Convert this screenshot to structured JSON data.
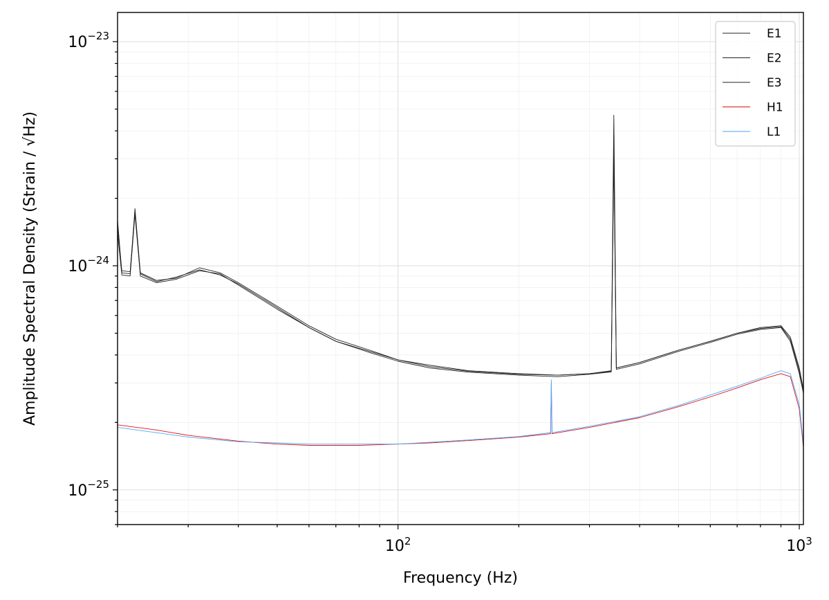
{
  "chart_data": {
    "type": "line",
    "title": "",
    "xlabel": "Frequency (Hz)",
    "ylabel": "Amplitude Spectral Density (Strain / √Hz)",
    "xscale": "log",
    "yscale": "log",
    "xlim": [
      20,
      1024
    ],
    "ylim": [
      7e-26,
      1.35e-23
    ],
    "grid": true,
    "legend_position": "top-right",
    "x_ticks": [
      {
        "value": 100,
        "base": "10",
        "exp": "2"
      },
      {
        "value": 1000,
        "base": "10",
        "exp": "3"
      }
    ],
    "y_ticks": [
      {
        "value": 1e-25,
        "base": "10",
        "exp": "−25"
      },
      {
        "value": 1e-24,
        "base": "10",
        "exp": "−24"
      },
      {
        "value": 1e-23,
        "base": "10",
        "exp": "−23"
      }
    ],
    "series": [
      {
        "name": "E1",
        "color": "#222222",
        "points": [
          [
            20,
            1.6e-24
          ],
          [
            20.5,
            9.3e-25
          ],
          [
            21.5,
            9.2e-25
          ],
          [
            22.1,
            1.8e-24
          ],
          [
            22.8,
            9.3e-25
          ],
          [
            25,
            8.6e-25
          ],
          [
            28,
            8.8e-25
          ],
          [
            32,
            9.8e-25
          ],
          [
            36,
            9.3e-25
          ],
          [
            40,
            8.4e-25
          ],
          [
            50,
            6.6e-25
          ],
          [
            60,
            5.4e-25
          ],
          [
            70,
            4.7e-25
          ],
          [
            85,
            4.2e-25
          ],
          [
            100,
            3.8e-25
          ],
          [
            120,
            3.6e-25
          ],
          [
            150,
            3.4e-25
          ],
          [
            200,
            3.3e-25
          ],
          [
            250,
            3.25e-25
          ],
          [
            300,
            3.3e-25
          ],
          [
            340,
            3.4e-25
          ],
          [
            345,
            4.7e-24
          ],
          [
            350,
            3.5e-25
          ],
          [
            400,
            3.7e-25
          ],
          [
            500,
            4.2e-25
          ],
          [
            600,
            4.6e-25
          ],
          [
            700,
            5e-25
          ],
          [
            800,
            5.3e-25
          ],
          [
            900,
            5.4e-25
          ],
          [
            950,
            4.8e-25
          ],
          [
            1000,
            3.5e-25
          ],
          [
            1024,
            2.8e-25
          ]
        ]
      },
      {
        "name": "E2",
        "color": "#222222",
        "points": [
          [
            20,
            1.5e-24
          ],
          [
            20.5,
            9.5e-25
          ],
          [
            21.5,
            9.4e-25
          ],
          [
            22.1,
            1.75e-24
          ],
          [
            22.8,
            9.2e-25
          ],
          [
            25,
            8.5e-25
          ],
          [
            28,
            8.9e-25
          ],
          [
            32,
            9.6e-25
          ],
          [
            36,
            9.1e-25
          ],
          [
            40,
            8.3e-25
          ],
          [
            50,
            6.5e-25
          ],
          [
            60,
            5.3e-25
          ],
          [
            70,
            4.6e-25
          ],
          [
            85,
            4.15e-25
          ],
          [
            100,
            3.8e-25
          ],
          [
            120,
            3.55e-25
          ],
          [
            150,
            3.38e-25
          ],
          [
            200,
            3.28e-25
          ],
          [
            250,
            3.25e-25
          ],
          [
            300,
            3.3e-25
          ],
          [
            340,
            3.38e-25
          ],
          [
            345,
            3.5e-24
          ],
          [
            350,
            3.5e-25
          ],
          [
            400,
            3.7e-25
          ],
          [
            500,
            4.2e-25
          ],
          [
            600,
            4.6e-25
          ],
          [
            700,
            5e-25
          ],
          [
            800,
            5.25e-25
          ],
          [
            900,
            5.35e-25
          ],
          [
            950,
            4.7e-25
          ],
          [
            1000,
            3.4e-25
          ],
          [
            1024,
            2.7e-25
          ]
        ]
      },
      {
        "name": "E3",
        "color": "#222222",
        "points": [
          [
            20,
            1.4e-24
          ],
          [
            20.5,
            9.1e-25
          ],
          [
            21.5,
            9e-25
          ],
          [
            22.1,
            1.7e-24
          ],
          [
            22.8,
            9e-25
          ],
          [
            25,
            8.4e-25
          ],
          [
            28,
            8.7e-25
          ],
          [
            32,
            9.5e-25
          ],
          [
            36,
            9.2e-25
          ],
          [
            40,
            8.2e-25
          ],
          [
            50,
            6.4e-25
          ],
          [
            60,
            5.3e-25
          ],
          [
            70,
            4.6e-25
          ],
          [
            85,
            4.1e-25
          ],
          [
            100,
            3.75e-25
          ],
          [
            120,
            3.5e-25
          ],
          [
            150,
            3.35e-25
          ],
          [
            200,
            3.25e-25
          ],
          [
            250,
            3.2e-25
          ],
          [
            300,
            3.28e-25
          ],
          [
            340,
            3.36e-25
          ],
          [
            345,
            3e-24
          ],
          [
            350,
            3.45e-25
          ],
          [
            400,
            3.65e-25
          ],
          [
            500,
            4.15e-25
          ],
          [
            600,
            4.55e-25
          ],
          [
            700,
            4.95e-25
          ],
          [
            800,
            5.2e-25
          ],
          [
            900,
            5.3e-25
          ],
          [
            950,
            4.6e-25
          ],
          [
            1000,
            3.3e-25
          ],
          [
            1024,
            2.7e-25
          ]
        ]
      },
      {
        "name": "H1",
        "color": "#dd1111",
        "points": [
          [
            20,
            1.95e-25
          ],
          [
            25,
            1.85e-25
          ],
          [
            30,
            1.75e-25
          ],
          [
            40,
            1.65e-25
          ],
          [
            50,
            1.6e-25
          ],
          [
            60,
            1.58e-25
          ],
          [
            80,
            1.58e-25
          ],
          [
            100,
            1.6e-25
          ],
          [
            120,
            1.62e-25
          ],
          [
            150,
            1.66e-25
          ],
          [
            200,
            1.72e-25
          ],
          [
            240,
            1.78e-25
          ],
          [
            241,
            3e-25
          ],
          [
            242,
            1.78e-25
          ],
          [
            300,
            1.9e-25
          ],
          [
            400,
            2.1e-25
          ],
          [
            500,
            2.35e-25
          ],
          [
            600,
            2.6e-25
          ],
          [
            700,
            2.85e-25
          ],
          [
            800,
            3.1e-25
          ],
          [
            900,
            3.3e-25
          ],
          [
            950,
            3.2e-25
          ],
          [
            1000,
            2.3e-25
          ],
          [
            1024,
            1.55e-25
          ]
        ]
      },
      {
        "name": "L1",
        "color": "#4da6ff",
        "points": [
          [
            20,
            1.9e-25
          ],
          [
            25,
            1.8e-25
          ],
          [
            30,
            1.72e-25
          ],
          [
            40,
            1.64e-25
          ],
          [
            50,
            1.62e-25
          ],
          [
            60,
            1.6e-25
          ],
          [
            80,
            1.6e-25
          ],
          [
            100,
            1.6e-25
          ],
          [
            120,
            1.63e-25
          ],
          [
            150,
            1.67e-25
          ],
          [
            200,
            1.73e-25
          ],
          [
            240,
            1.8e-25
          ],
          [
            241,
            3.1e-25
          ],
          [
            242,
            1.8e-25
          ],
          [
            300,
            1.92e-25
          ],
          [
            400,
            2.12e-25
          ],
          [
            500,
            2.38e-25
          ],
          [
            600,
            2.65e-25
          ],
          [
            700,
            2.9e-25
          ],
          [
            800,
            3.15e-25
          ],
          [
            900,
            3.4e-25
          ],
          [
            950,
            3.3e-25
          ],
          [
            1000,
            2.4e-25
          ],
          [
            1024,
            1.6e-25
          ]
        ]
      }
    ]
  }
}
